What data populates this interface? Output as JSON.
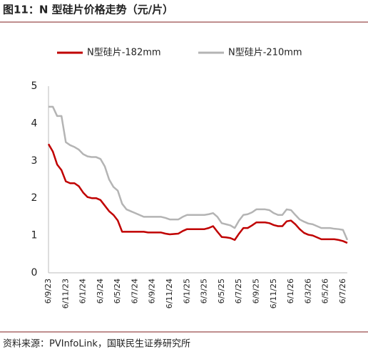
{
  "chart_data": {
    "type": "line",
    "title": "图11：N 型硅片价格走势（元/片）",
    "source": "资料来源：PVInfoLink，国联民生证券研究所",
    "categories": [
      "6/9/23",
      null,
      null,
      null,
      "6/11/23",
      null,
      null,
      null,
      "6/1/24",
      null,
      null,
      null,
      "6/3/24",
      null,
      null,
      null,
      "6/5/24",
      null,
      null,
      null,
      "6/7/24",
      null,
      null,
      null,
      "6/9/24",
      null,
      null,
      null,
      "6/11/24",
      null,
      null,
      null,
      "6/1/25",
      null,
      null,
      null,
      "6/3/25",
      null,
      null,
      null,
      "6/5/25",
      null,
      null,
      null,
      "6/7/25",
      null,
      null,
      null,
      "6/9/25",
      null,
      null,
      null,
      "6/11/25",
      null,
      null,
      null,
      "6/1/26",
      null,
      null,
      null,
      "6/3/26",
      null,
      null,
      null,
      "6/5/26",
      null,
      null,
      null,
      "6/7/26",
      null
    ],
    "series": [
      {
        "name": "N型硅片-182mm",
        "color": "#c00000",
        "values": [
          3.45,
          3.25,
          2.9,
          2.75,
          2.45,
          2.4,
          2.4,
          2.32,
          2.15,
          2.03,
          2.0,
          2.0,
          1.95,
          1.8,
          1.65,
          1.55,
          1.4,
          1.1,
          1.1,
          1.1,
          1.1,
          1.1,
          1.1,
          1.08,
          1.08,
          1.08,
          1.08,
          1.05,
          1.03,
          1.04,
          1.05,
          1.12,
          1.17,
          1.17,
          1.17,
          1.17,
          1.17,
          1.2,
          1.25,
          1.1,
          0.96,
          0.95,
          0.93,
          0.88,
          1.05,
          1.2,
          1.2,
          1.27,
          1.35,
          1.35,
          1.35,
          1.33,
          1.28,
          1.25,
          1.25,
          1.38,
          1.4,
          1.3,
          1.17,
          1.07,
          1.02,
          1.0,
          0.95,
          0.9,
          0.9,
          0.9,
          0.9,
          0.88,
          0.85,
          0.8
        ]
      },
      {
        "name": "N型硅片-210mm",
        "color": "#b4b4b4",
        "values": [
          4.45,
          4.45,
          4.2,
          4.2,
          3.5,
          3.42,
          3.37,
          3.3,
          3.18,
          3.12,
          3.1,
          3.1,
          3.05,
          2.85,
          2.5,
          2.3,
          2.2,
          1.85,
          1.7,
          1.65,
          1.6,
          1.55,
          1.5,
          1.5,
          1.5,
          1.5,
          1.5,
          1.47,
          1.43,
          1.43,
          1.43,
          1.5,
          1.55,
          1.55,
          1.55,
          1.55,
          1.55,
          1.57,
          1.6,
          1.5,
          1.33,
          1.3,
          1.27,
          1.2,
          1.4,
          1.55,
          1.57,
          1.62,
          1.7,
          1.7,
          1.7,
          1.68,
          1.6,
          1.55,
          1.55,
          1.7,
          1.68,
          1.55,
          1.43,
          1.37,
          1.32,
          1.3,
          1.25,
          1.2,
          1.2,
          1.2,
          1.18,
          1.17,
          1.15,
          0.88
        ]
      }
    ],
    "ylim": [
      0,
      5
    ],
    "yticks": [
      0,
      1,
      2,
      3,
      4,
      5
    ],
    "grid": false
  }
}
